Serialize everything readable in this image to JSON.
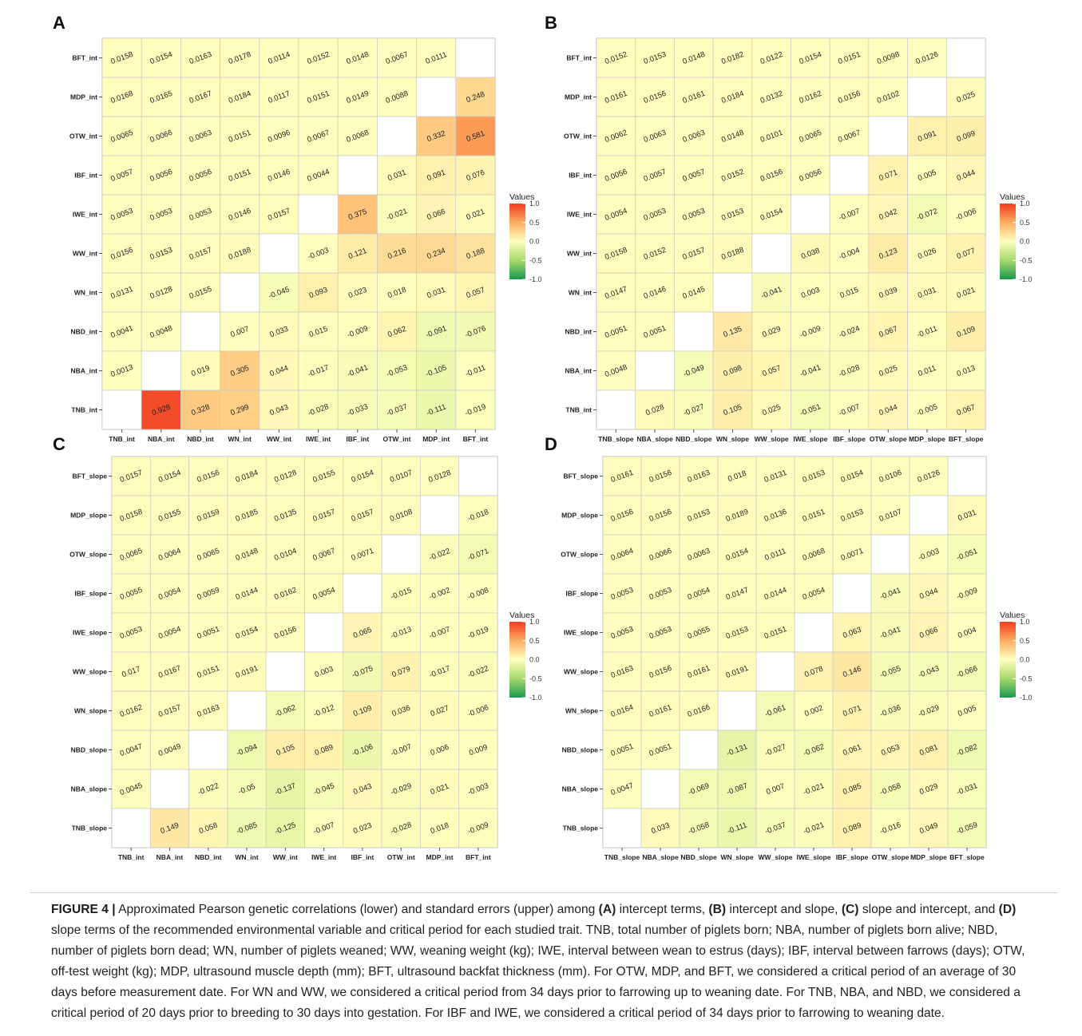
{
  "colors": {
    "high": "#f03b20",
    "mid_high": "#fdae61",
    "zero": "#ffffbf",
    "mid_low": "#a6d96a",
    "low": "#1a9850",
    "cell_border": "#c9c9c9",
    "diagonal": "#ffffff"
  },
  "legend": {
    "title": "Values",
    "ticks": [
      "1.0",
      "0.5",
      "0.0",
      "-0.5",
      "-1.0"
    ],
    "tick_values": [
      1.0,
      0.5,
      0.0,
      -0.5,
      -1.0
    ],
    "range": [
      -1.0,
      1.0
    ]
  },
  "chart_data": [
    {
      "type": "heatmap",
      "panel": "A",
      "x_labels": [
        "TNB_int",
        "NBA_int",
        "NBD_int",
        "WN_int",
        "WW_int",
        "IWE_int",
        "IBF_int",
        "OTW_int",
        "MDP_int",
        "BFT_int"
      ],
      "y_labels_top_to_bottom": [
        "BFT_int",
        "MDP_int",
        "OTW_int",
        "IBF_int",
        "IWE_int",
        "WW_int",
        "WN_int",
        "NBD_int",
        "NBA_int",
        "TNB_int"
      ],
      "values": [
        [
          "0.0158",
          "0.0154",
          "0.0163",
          "0.0178",
          "0.0114",
          "0.0152",
          "0.0148",
          "0.0067",
          "0.0111",
          ""
        ],
        [
          "0.0168",
          "0.0165",
          "0.0167",
          "0.0184",
          "0.0117",
          "0.0151",
          "0.0149",
          "0.0088",
          "",
          "0.248"
        ],
        [
          "0.0065",
          "0.0066",
          "0.0063",
          "0.0151",
          "0.0096",
          "0.0067",
          "0.0068",
          "",
          "0.332",
          "0.581"
        ],
        [
          "0.0057",
          "0.0056",
          "0.0056",
          "0.0151",
          "0.0146",
          "0.0044",
          "",
          "0.031",
          "0.091",
          "0.076"
        ],
        [
          "0.0053",
          "0.0053",
          "0.0053",
          "0.0146",
          "0.0157",
          "",
          "0.375",
          "-0.021",
          "0.066",
          "0.021"
        ],
        [
          "0.0156",
          "0.0153",
          "0.0157",
          "0.0188",
          "",
          "-0.003",
          "0.121",
          "0.216",
          "0.234",
          "0.188"
        ],
        [
          "0.0131",
          "0.0128",
          "0.0155",
          "",
          "-0.045",
          "0.093",
          "0.023",
          "0.018",
          "0.031",
          "0.057"
        ],
        [
          "0.0041",
          "0.0048",
          "",
          "0.007",
          "0.033",
          "0.015",
          "-0.009",
          "0.062",
          "-0.091",
          "-0.076"
        ],
        [
          "0.0013",
          "",
          "0.019",
          "0.305",
          "0.044",
          "-0.017",
          "-0.041",
          "-0.053",
          "-0.105",
          "-0.011"
        ],
        [
          "",
          "0.928",
          "0.328",
          "0.299",
          "0.043",
          "-0.028",
          "-0.033",
          "-0.037",
          "-0.111",
          "-0.019"
        ]
      ]
    },
    {
      "type": "heatmap",
      "panel": "B",
      "x_labels": [
        "TNB_slope",
        "NBA_slope",
        "NBD_slope",
        "WN_slope",
        "WW_slope",
        "IWE_slope",
        "IBF_slope",
        "OTW_slope",
        "MDP_slope",
        "BFT_slope"
      ],
      "y_labels_top_to_bottom": [
        "BFT_int",
        "MDP_int",
        "OTW_int",
        "IBF_int",
        "IWE_int",
        "WW_int",
        "WN_int",
        "NBD_int",
        "NBA_int",
        "TNB_int"
      ],
      "values": [
        [
          "0.0152",
          "0.0153",
          "0.0148",
          "0.0182",
          "0.0122",
          "0.0154",
          "0.0151",
          "0.0098",
          "0.0126",
          ""
        ],
        [
          "0.0161",
          "0.0156",
          "0.0161",
          "0.0184",
          "0.0132",
          "0.0162",
          "0.0156",
          "0.0102",
          "",
          "0.025"
        ],
        [
          "0.0062",
          "0.0063",
          "0.0063",
          "0.0148",
          "0.0101",
          "0.0065",
          "0.0067",
          "",
          "0.091",
          "0.099"
        ],
        [
          "0.0056",
          "0.0057",
          "0.0057",
          "0.0152",
          "0.0156",
          "0.0056",
          "",
          "0.071",
          "0.005",
          "0.044"
        ],
        [
          "0.0054",
          "0.0053",
          "0.0053",
          "0.0153",
          "0.0154",
          "",
          "-0.007",
          "0.042",
          "-0.072",
          "-0.006"
        ],
        [
          "0.0158",
          "0.0152",
          "0.0157",
          "0.0188",
          "",
          "0.038",
          "-0.004",
          "0.123",
          "0.026",
          "0.077"
        ],
        [
          "0.0147",
          "0.0146",
          "0.0145",
          "",
          "-0.041",
          "0.003",
          "0.015",
          "0.039",
          "0.031",
          "0.021"
        ],
        [
          "0.0051",
          "0.0051",
          "",
          "0.135",
          "0.029",
          "-0.009",
          "-0.024",
          "0.067",
          "-0.011",
          "0.109"
        ],
        [
          "0.0048",
          "",
          "-0.049",
          "0.098",
          "0.057",
          "-0.041",
          "-0.028",
          "0.025",
          "0.011",
          "0.013"
        ],
        [
          "",
          "0.028",
          "-0.027",
          "0.105",
          "0.025",
          "-0.051",
          "-0.007",
          "0.044",
          "-0.005",
          "0.067"
        ]
      ]
    },
    {
      "type": "heatmap",
      "panel": "C",
      "x_labels": [
        "TNB_int",
        "NBA_int",
        "NBD_int",
        "WN_int",
        "WW_int",
        "IWE_int",
        "IBF_int",
        "OTW_int",
        "MDP_int",
        "BFT_int"
      ],
      "y_labels_top_to_bottom": [
        "BFT_slope",
        "MDP_slope",
        "OTW_slope",
        "IBF_slope",
        "IWE_slope",
        "WW_slope",
        "WN_slope",
        "NBD_slope",
        "NBA_slope",
        "TNB_slope"
      ],
      "values": [
        [
          "0.0157",
          "0.0154",
          "0.0156",
          "0.0184",
          "0.0128",
          "0.0155",
          "0.0154",
          "0.0107",
          "0.0128",
          ""
        ],
        [
          "0.0158",
          "0.0155",
          "0.0159",
          "0.0185",
          "0.0135",
          "0.0157",
          "0.0157",
          "0.0108",
          "",
          "-0.018"
        ],
        [
          "0.0065",
          "0.0064",
          "0.0065",
          "0.0148",
          "0.0104",
          "0.0067",
          "0.0071",
          "",
          "-0.022",
          "-0.071"
        ],
        [
          "0.0055",
          "0.0054",
          "0.0059",
          "0.0144",
          "0.0162",
          "0.0054",
          "",
          "-0.015",
          "-0.002",
          "-0.008"
        ],
        [
          "0.0053",
          "0.0054",
          "0.0051",
          "0.0154",
          "0.0156",
          "",
          "0.065",
          "-0.013",
          "-0.007",
          "-0.019"
        ],
        [
          "0.017",
          "0.0167",
          "0.0151",
          "0.0191",
          "",
          "0.003",
          "-0.075",
          "0.079",
          "-0.017",
          "-0.022"
        ],
        [
          "0.0162",
          "0.0157",
          "0.0163",
          "",
          "-0.062",
          "-0.012",
          "0.109",
          "0.036",
          "0.027",
          "-0.006"
        ],
        [
          "0.0047",
          "0.0049",
          "",
          "-0.094",
          "0.105",
          "0.089",
          "-0.106",
          "-0.007",
          "0.006",
          "0.009"
        ],
        [
          "0.0045",
          "",
          "-0.022",
          "-0.05",
          "-0.137",
          "-0.045",
          "0.043",
          "-0.029",
          "0.021",
          "-0.003"
        ],
        [
          "",
          "0.149",
          "0.058",
          "-0.085",
          "-0.125",
          "-0.007",
          "0.023",
          "-0.028",
          "0.018",
          "-0.009"
        ]
      ]
    },
    {
      "type": "heatmap",
      "panel": "D",
      "x_labels": [
        "TNB_slope",
        "NBA_slope",
        "NBD_slope",
        "WN_slope",
        "WW_slope",
        "IWE_slope",
        "IBF_slope",
        "OTW_slope",
        "MDP_slope",
        "BFT_slope"
      ],
      "y_labels_top_to_bottom": [
        "BFT_slope",
        "MDP_slope",
        "OTW_slope",
        "IBF_slope",
        "IWE_slope",
        "WW_slope",
        "WN_slope",
        "NBD_slope",
        "NBA_slope",
        "TNB_slope"
      ],
      "values": [
        [
          "0.0161",
          "0.0156",
          "0.0163",
          "0.018",
          "0.0131",
          "0.0153",
          "0.0154",
          "0.0106",
          "0.0126",
          ""
        ],
        [
          "0.0156",
          "0.0156",
          "0.0153",
          "0.0189",
          "0.0136",
          "0.0151",
          "0.0153",
          "0.0107",
          "",
          "0.031"
        ],
        [
          "0.0064",
          "0.0066",
          "0.0063",
          "0.0154",
          "0.0111",
          "0.0068",
          "0.0071",
          "",
          "-0.003",
          "-0.051"
        ],
        [
          "0.0053",
          "0.0053",
          "0.0054",
          "0.0147",
          "0.0144",
          "0.0054",
          "",
          "-0.041",
          "0.044",
          "-0.009"
        ],
        [
          "0.0053",
          "0.0053",
          "0.0055",
          "0.0153",
          "0.0151",
          "",
          "0.063",
          "-0.041",
          "0.066",
          "0.004"
        ],
        [
          "0.0163",
          "0.0156",
          "0.0161",
          "0.0191",
          "",
          "0.078",
          "0.146",
          "-0.055",
          "-0.043",
          "-0.066"
        ],
        [
          "0.0164",
          "0.0161",
          "0.0166",
          "",
          "-0.061",
          "0.002",
          "0.071",
          "-0.036",
          "-0.029",
          "0.005"
        ],
        [
          "0.0051",
          "0.0051",
          "",
          "-0.131",
          "-0.027",
          "-0.062",
          "0.061",
          "0.053",
          "0.081",
          "-0.082"
        ],
        [
          "0.0047",
          "",
          "-0.069",
          "-0.087",
          "0.007",
          "-0.021",
          "0.085",
          "-0.058",
          "0.029",
          "-0.031"
        ],
        [
          "",
          "0.033",
          "-0.058",
          "-0.111",
          "-0.037",
          "-0.021",
          "0.089",
          "-0.016",
          "0.049",
          "-0.059"
        ]
      ]
    }
  ],
  "caption": {
    "label": "FIGURE 4 |",
    "seg1": " Approximated Pearson genetic correlations (lower) and standard errors (upper) among ",
    "tagA": "(A)",
    "seg2": " intercept terms, ",
    "tagB": "(B)",
    "seg3": " intercept and slope, ",
    "tagC": "(C)",
    "seg4": " slope and intercept, and ",
    "tagD": "(D)",
    "seg5": " slope terms of the recommended environmental variable and critical period for each studied trait. TNB, total number of piglets born; NBA, number of piglets born alive; NBD, number of piglets born dead; WN, number of piglets weaned; WW, weaning weight (kg); IWE, interval between wean to estrus (days); IBF, interval between farrows (days); OTW, off-test weight (kg); MDP, ultrasound muscle depth (mm); BFT, ultrasound backfat thickness (mm). For OTW, MDP, and BFT, we considered a critical period of an average of 30 days before measurement date. For WN and WW, we considered a critical period from 34 days prior to farrowing up to weaning date. For TNB, NBA, and NBD, we considered a critical period of 20 days prior to breeding to 30 days into gestation. For IBF and IWE, we considered a critical period of 34 days prior to farrowing to weaning date."
  }
}
